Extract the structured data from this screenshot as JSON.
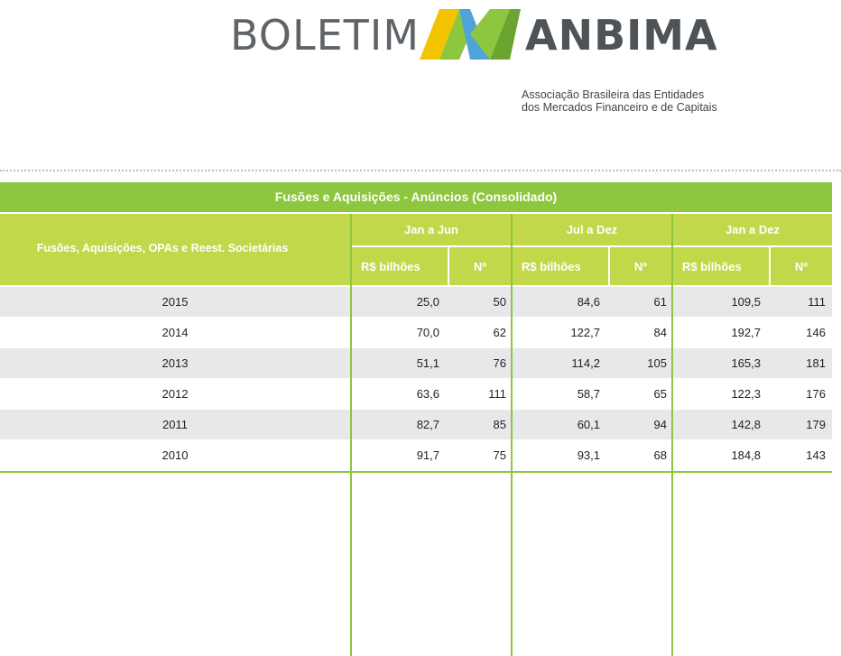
{
  "brand": {
    "left_text": "BOLETIM",
    "right_text": "ANBIMA",
    "subtitle_line1": "Associação Brasileira das Entidades",
    "subtitle_line2": "dos Mercados Financeiro e de Capitais",
    "colors": {
      "green": "#8dc63f",
      "yellow": "#f2c400",
      "blue": "#4fa3d9",
      "lime": "#c2d84a"
    }
  },
  "table": {
    "title": "Fusões e Aquisições - Anúncios (Consolidado)",
    "row_header": "Fusões, Aquisições, OPAs e Reest. Societárias",
    "groups": [
      "Jan a Jun",
      "Jul a Dez",
      "Jan a Dez"
    ],
    "sub_headers": [
      "R$ bilhões",
      "Nº",
      "R$ bilhões",
      "Nº",
      "R$ bilhões",
      "Nº"
    ],
    "rows": [
      {
        "year": "2015",
        "v": [
          "25,0",
          "50",
          "84,6",
          "61",
          "109,5",
          "111"
        ]
      },
      {
        "year": "2014",
        "v": [
          "70,0",
          "62",
          "122,7",
          "84",
          "192,7",
          "146"
        ]
      },
      {
        "year": "2013",
        "v": [
          "51,1",
          "76",
          "114,2",
          "105",
          "165,3",
          "181"
        ]
      },
      {
        "year": "2012",
        "v": [
          "63,6",
          "111",
          "58,7",
          "65",
          "122,3",
          "176"
        ]
      },
      {
        "year": "2011",
        "v": [
          "82,7",
          "85",
          "60,1",
          "94",
          "142,8",
          "179"
        ]
      },
      {
        "year": "2010",
        "v": [
          "91,7",
          "75",
          "93,1",
          "68",
          "184,8",
          "143"
        ]
      }
    ]
  }
}
